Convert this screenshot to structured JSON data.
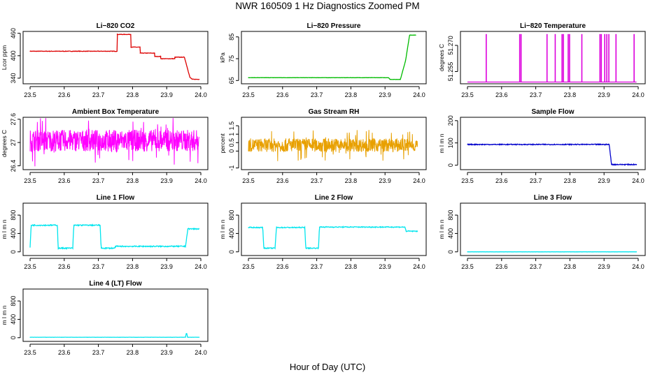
{
  "figure": {
    "title": "NWR  160509  1 Hz Diagnostics Zoomed PM",
    "xlabel": "Hour of Day (UTC)"
  },
  "chart_data": [
    {
      "type": "line",
      "title": "Li−820 CO2",
      "ylabel": "Lcor ppm",
      "color": "#dd0000",
      "xlim": [
        23.5,
        24.0
      ],
      "ylim": [
        325,
        465
      ],
      "xticks": [
        "23.5",
        "23.6",
        "23.7",
        "23.8",
        "23.9",
        "24.0"
      ],
      "yticks": [
        340,
        400,
        460
      ],
      "noise": 0.6,
      "x": [
        23.5,
        23.755,
        23.755,
        23.795,
        23.795,
        23.822,
        23.822,
        23.865,
        23.865,
        23.883,
        23.883,
        23.924,
        23.924,
        23.952,
        23.968,
        23.975,
        23.995
      ],
      "y": [
        412,
        412,
        457,
        457,
        423,
        423,
        407,
        407,
        398,
        398,
        392,
        392,
        396,
        396,
        342,
        337,
        337
      ]
    },
    {
      "type": "line",
      "title": "Li−820 Pressure",
      "ylabel": "kPa",
      "color": "#00bb00",
      "xlim": [
        23.5,
        24.0
      ],
      "ylim": [
        63.5,
        87.5
      ],
      "xticks": [
        "23.5",
        "23.6",
        "23.7",
        "23.8",
        "23.9",
        "24.0"
      ],
      "yticks": [
        65,
        75,
        85
      ],
      "noise": 0.05,
      "x": [
        23.5,
        23.91,
        23.915,
        23.945,
        23.96,
        23.972,
        23.99
      ],
      "y": [
        66.3,
        66.3,
        65.5,
        65.5,
        74,
        85.8,
        85.8
      ]
    },
    {
      "type": "spikes",
      "title": "Li−820 Temperature",
      "ylabel": "degrees C",
      "color": "#dd00dd",
      "xlim": [
        23.5,
        24.0
      ],
      "ylim": [
        51.248,
        51.278
      ],
      "xticks": [
        "23.5",
        "23.6",
        "23.7",
        "23.8",
        "23.9",
        "24.0"
      ],
      "yticks": [
        "51.255",
        "51.270"
      ],
      "base": 51.249,
      "peak": 51.2765,
      "spikes": [
        23.555,
        23.653,
        23.657,
        23.733,
        23.757,
        23.777,
        23.781,
        23.795,
        23.799,
        23.835,
        23.888,
        23.892,
        23.902,
        23.908,
        23.914,
        23.935,
        23.988
      ]
    },
    {
      "type": "noise",
      "title": "Ambient Box Temperature",
      "ylabel": "degrees C",
      "color": "#ff00ff",
      "xlim": [
        23.5,
        24.0
      ],
      "ylim": [
        26.3,
        27.65
      ],
      "xticks": [
        "23.5",
        "23.6",
        "23.7",
        "23.8",
        "23.9",
        "24.0"
      ],
      "yticks": [
        26.4,
        27.0,
        27.6
      ],
      "center": 27.05,
      "spread": 0.28
    },
    {
      "type": "noise",
      "title": "Gas Stream RH",
      "ylabel": "percent",
      "color": "#e8a000",
      "xlim": [
        23.5,
        24.0
      ],
      "ylim": [
        -1.1,
        2.0
      ],
      "xticks": [
        "23.5",
        "23.6",
        "23.7",
        "23.8",
        "23.9",
        "24.0"
      ],
      "yticks": [
        -1.0,
        0.0,
        0.5,
        1.0,
        1.5
      ],
      "center": 0.35,
      "spread": 0.4
    },
    {
      "type": "line",
      "title": "Sample Flow",
      "ylabel": "m l m n",
      "color": "#0000cc",
      "xlim": [
        23.5,
        24.0
      ],
      "ylim": [
        -20,
        215
      ],
      "xticks": [
        "23.5",
        "23.6",
        "23.7",
        "23.8",
        "23.9",
        "24.0"
      ],
      "yticks": [
        0,
        100,
        200
      ],
      "noise": 2,
      "x": [
        23.5,
        23.915,
        23.922,
        23.995
      ],
      "y": [
        93,
        93,
        3,
        3
      ]
    },
    {
      "type": "line",
      "title": "Line 1 Flow",
      "ylabel": "m l m n",
      "color": "#00e5ee",
      "xlim": [
        23.5,
        24.0
      ],
      "ylim": [
        -80,
        1060
      ],
      "xticks": [
        "23.5",
        "23.6",
        "23.7",
        "23.8",
        "23.9",
        "24.0"
      ],
      "yticks": [
        0,
        400,
        800
      ],
      "noise": 12,
      "x": [
        23.5,
        23.503,
        23.58,
        23.582,
        23.625,
        23.628,
        23.705,
        23.708,
        23.748,
        23.75,
        23.955,
        23.962,
        23.995
      ],
      "y": [
        100,
        580,
        580,
        80,
        80,
        580,
        580,
        80,
        80,
        120,
        120,
        500,
        500
      ]
    },
    {
      "type": "line",
      "title": "Line 2 Flow",
      "ylabel": "m l m n",
      "color": "#00e5ee",
      "xlim": [
        23.5,
        24.0
      ],
      "ylim": [
        -80,
        1060
      ],
      "xticks": [
        "23.5",
        "23.6",
        "23.7",
        "23.8",
        "23.9",
        "24.0"
      ],
      "yticks": [
        0,
        400,
        800
      ],
      "noise": 10,
      "x": [
        23.5,
        23.542,
        23.545,
        23.578,
        23.582,
        23.665,
        23.668,
        23.705,
        23.708,
        23.958,
        23.962,
        23.995
      ],
      "y": [
        530,
        530,
        80,
        80,
        530,
        530,
        80,
        80,
        540,
        540,
        450,
        450
      ]
    },
    {
      "type": "line",
      "title": "Line 3 Flow",
      "ylabel": "m l m n",
      "color": "#00e5ee",
      "xlim": [
        23.5,
        24.0
      ],
      "ylim": [
        -80,
        1060
      ],
      "xticks": [
        "23.5",
        "23.6",
        "23.7",
        "23.8",
        "23.9",
        "24.0"
      ],
      "yticks": [
        0,
        400,
        800
      ],
      "noise": 1,
      "x": [
        23.5,
        23.995
      ],
      "y": [
        0,
        0
      ]
    },
    {
      "type": "line",
      "title": "Line 4 (LT) Flow",
      "ylabel": "m l m n",
      "color": "#00e5ee",
      "xlim": [
        23.5,
        24.0
      ],
      "ylim": [
        -80,
        1060
      ],
      "xticks": [
        "23.5",
        "23.6",
        "23.7",
        "23.8",
        "23.9",
        "24.0"
      ],
      "yticks": [
        0,
        400,
        800
      ],
      "noise": 2,
      "x": [
        23.5,
        23.955,
        23.957,
        23.959,
        23.961,
        23.995
      ],
      "y": [
        10,
        10,
        90,
        90,
        10,
        10
      ]
    }
  ]
}
